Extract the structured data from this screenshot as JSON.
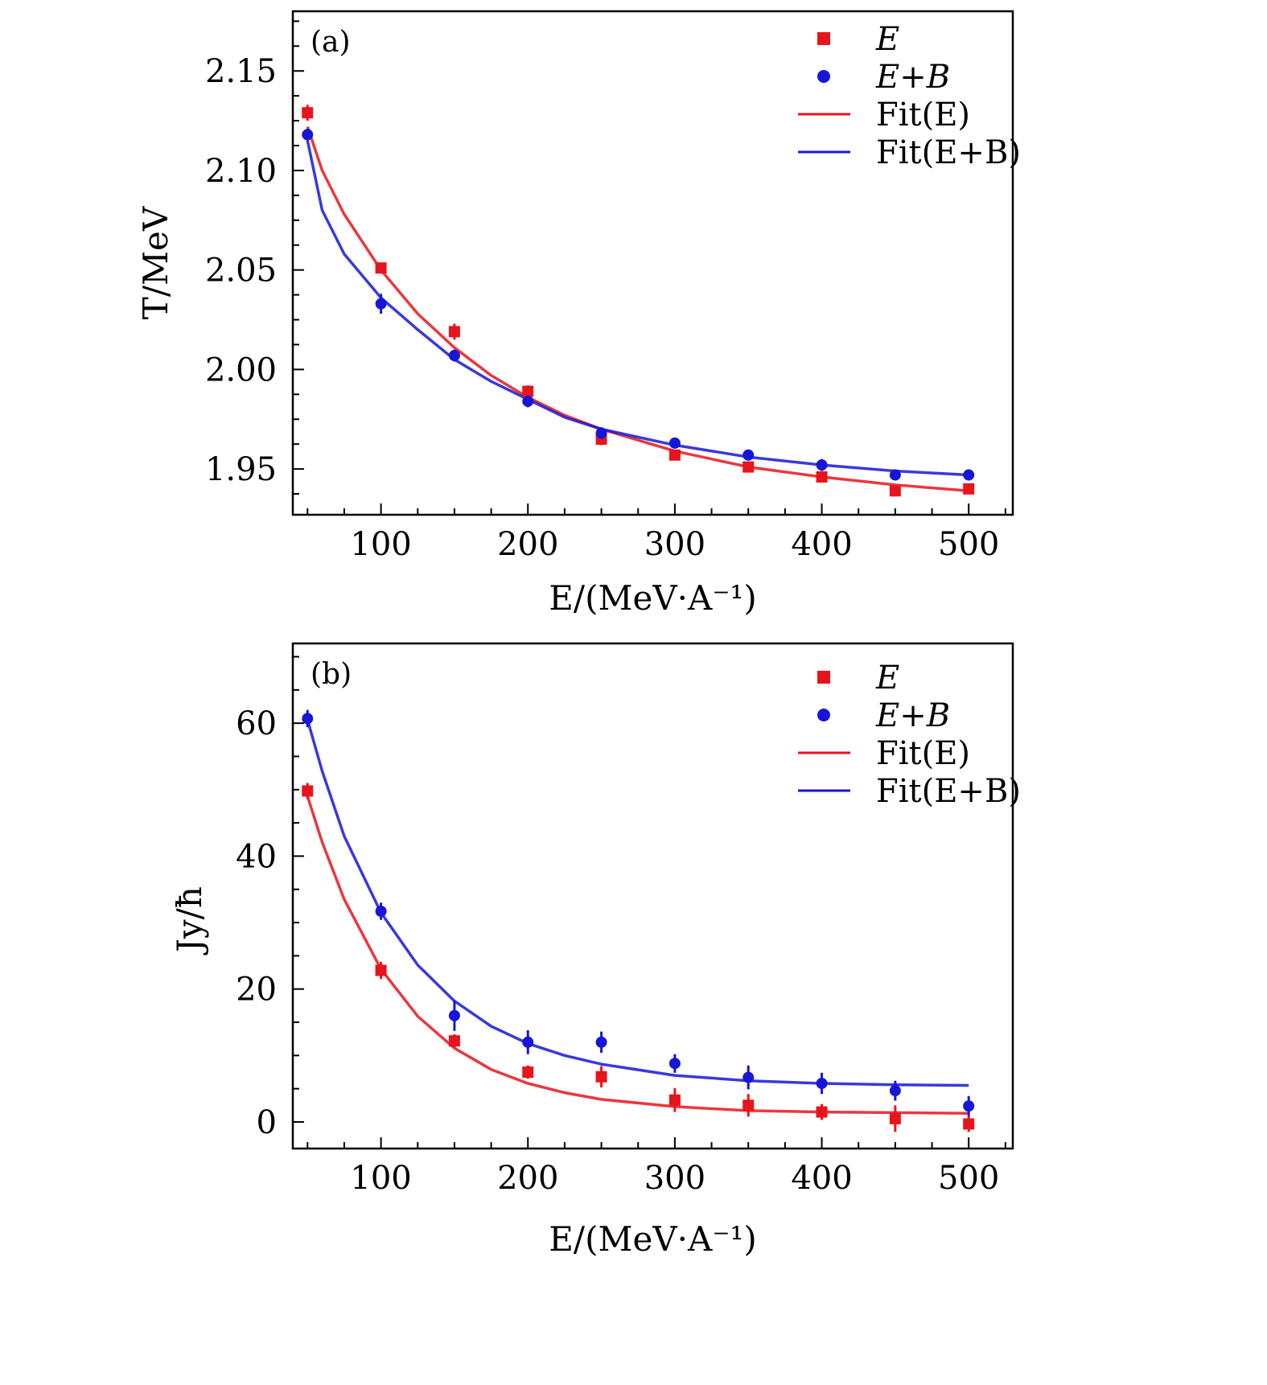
{
  "legend": {
    "items": [
      {
        "label": "E",
        "kind": "square",
        "color": "#e8141c"
      },
      {
        "label": "E+B",
        "kind": "circle",
        "color": "#1616d8"
      },
      {
        "label": "Fit(E)",
        "kind": "line",
        "color": "#e8141c"
      },
      {
        "label": "Fit(E+B)",
        "kind": "line",
        "color": "#1616d8"
      }
    ]
  },
  "colors": {
    "E": "#e8141c",
    "EB": "#1616d8",
    "axis": "#000000"
  },
  "chart_data": [
    {
      "type": "scatter",
      "panel_label": "(a)",
      "xlabel": "E/(MeV·A⁻¹)",
      "ylabel": "T/MeV",
      "xlim": [
        40,
        530
      ],
      "ylim": [
        1.927,
        2.18
      ],
      "xticks": [
        100,
        200,
        300,
        400,
        500
      ],
      "yticks": [
        1.95,
        2.0,
        2.05,
        2.1,
        2.15
      ],
      "ytick_labels": [
        "1.95",
        "2.00",
        "2.05",
        "2.10",
        "2.15"
      ],
      "legend_position": "top-right",
      "grid": false,
      "x": [
        50,
        100,
        150,
        200,
        250,
        300,
        350,
        400,
        450,
        500
      ],
      "series": [
        {
          "name": "E",
          "marker": "square",
          "color": "#e8141c",
          "values": [
            2.129,
            2.051,
            2.019,
            1.989,
            1.965,
            1.957,
            1.951,
            1.946,
            1.939,
            1.94
          ],
          "errors": [
            0.004,
            0.002,
            0.004,
            0.003,
            0.003,
            0.002,
            0.002,
            0.002,
            0.002,
            0.002
          ]
        },
        {
          "name": "E+B",
          "marker": "circle",
          "color": "#1616d8",
          "values": [
            2.118,
            2.033,
            2.007,
            1.984,
            1.968,
            1.963,
            1.957,
            1.952,
            1.947,
            1.947
          ],
          "errors": [
            0.003,
            0.005,
            0.003,
            0.003,
            0.003,
            0.002,
            0.002,
            0.003,
            0.002,
            0.002
          ]
        }
      ],
      "fits": [
        {
          "name": "Fit(E)",
          "color": "#e8141c",
          "x": [
            50,
            60,
            75,
            100,
            125,
            150,
            175,
            200,
            225,
            250,
            300,
            350,
            400,
            450,
            500
          ],
          "values": [
            2.122,
            2.1,
            2.078,
            2.05,
            2.028,
            2.011,
            1.997,
            1.986,
            1.977,
            1.97,
            1.959,
            1.951,
            1.946,
            1.942,
            1.939
          ]
        },
        {
          "name": "Fit(E+B)",
          "color": "#1616d8",
          "x": [
            50,
            60,
            75,
            100,
            125,
            150,
            175,
            200,
            225,
            250,
            300,
            350,
            400,
            450,
            500
          ],
          "values": [
            2.115,
            2.08,
            2.058,
            2.036,
            2.02,
            2.005,
            1.994,
            1.985,
            1.976,
            1.97,
            1.962,
            1.956,
            1.952,
            1.949,
            1.947
          ]
        }
      ]
    },
    {
      "type": "scatter",
      "panel_label": "(b)",
      "xlabel": "E/(MeV·A⁻¹)",
      "ylabel": "Jy/ħ",
      "xlim": [
        40,
        530
      ],
      "ylim": [
        -4,
        72
      ],
      "xticks": [
        100,
        200,
        300,
        400,
        500
      ],
      "yticks": [
        0,
        20,
        40,
        60
      ],
      "ytick_labels": [
        "0",
        "20",
        "40",
        "60"
      ],
      "legend_position": "top-right",
      "grid": false,
      "x": [
        50,
        100,
        150,
        200,
        250,
        300,
        350,
        400,
        450,
        500
      ],
      "series": [
        {
          "name": "E",
          "marker": "square",
          "color": "#e8141c",
          "values": [
            49.8,
            22.8,
            12.2,
            7.5,
            6.8,
            3.3,
            2.5,
            1.5,
            0.5,
            -0.3
          ],
          "errors": [
            1.2,
            1.3,
            1.0,
            1.0,
            1.6,
            1.8,
            1.7,
            1.2,
            2.0,
            1.2
          ]
        },
        {
          "name": "E+B",
          "marker": "circle",
          "color": "#1616d8",
          "values": [
            60.7,
            31.7,
            16.0,
            12.0,
            12.0,
            8.8,
            6.7,
            5.8,
            4.7,
            2.4
          ],
          "errors": [
            1.3,
            1.3,
            2.3,
            1.8,
            1.6,
            1.4,
            1.8,
            1.6,
            1.5,
            1.5
          ]
        }
      ],
      "fits": [
        {
          "name": "Fit(E)",
          "color": "#e8141c",
          "x": [
            50,
            60,
            75,
            100,
            125,
            150,
            175,
            200,
            225,
            250,
            300,
            350,
            400,
            450,
            500
          ],
          "values": [
            49.0,
            42.1,
            33.5,
            23.0,
            15.9,
            11.1,
            7.9,
            5.8,
            4.4,
            3.4,
            2.3,
            1.7,
            1.5,
            1.4,
            1.3
          ]
        },
        {
          "name": "Fit(E+B)",
          "color": "#1616d8",
          "x": [
            50,
            60,
            75,
            100,
            125,
            150,
            175,
            200,
            225,
            250,
            300,
            350,
            400,
            450,
            500
          ],
          "values": [
            60.5,
            52.8,
            43.0,
            31.5,
            23.6,
            18.2,
            14.4,
            11.8,
            10.0,
            8.7,
            7.0,
            6.2,
            5.8,
            5.6,
            5.5
          ]
        }
      ]
    }
  ]
}
